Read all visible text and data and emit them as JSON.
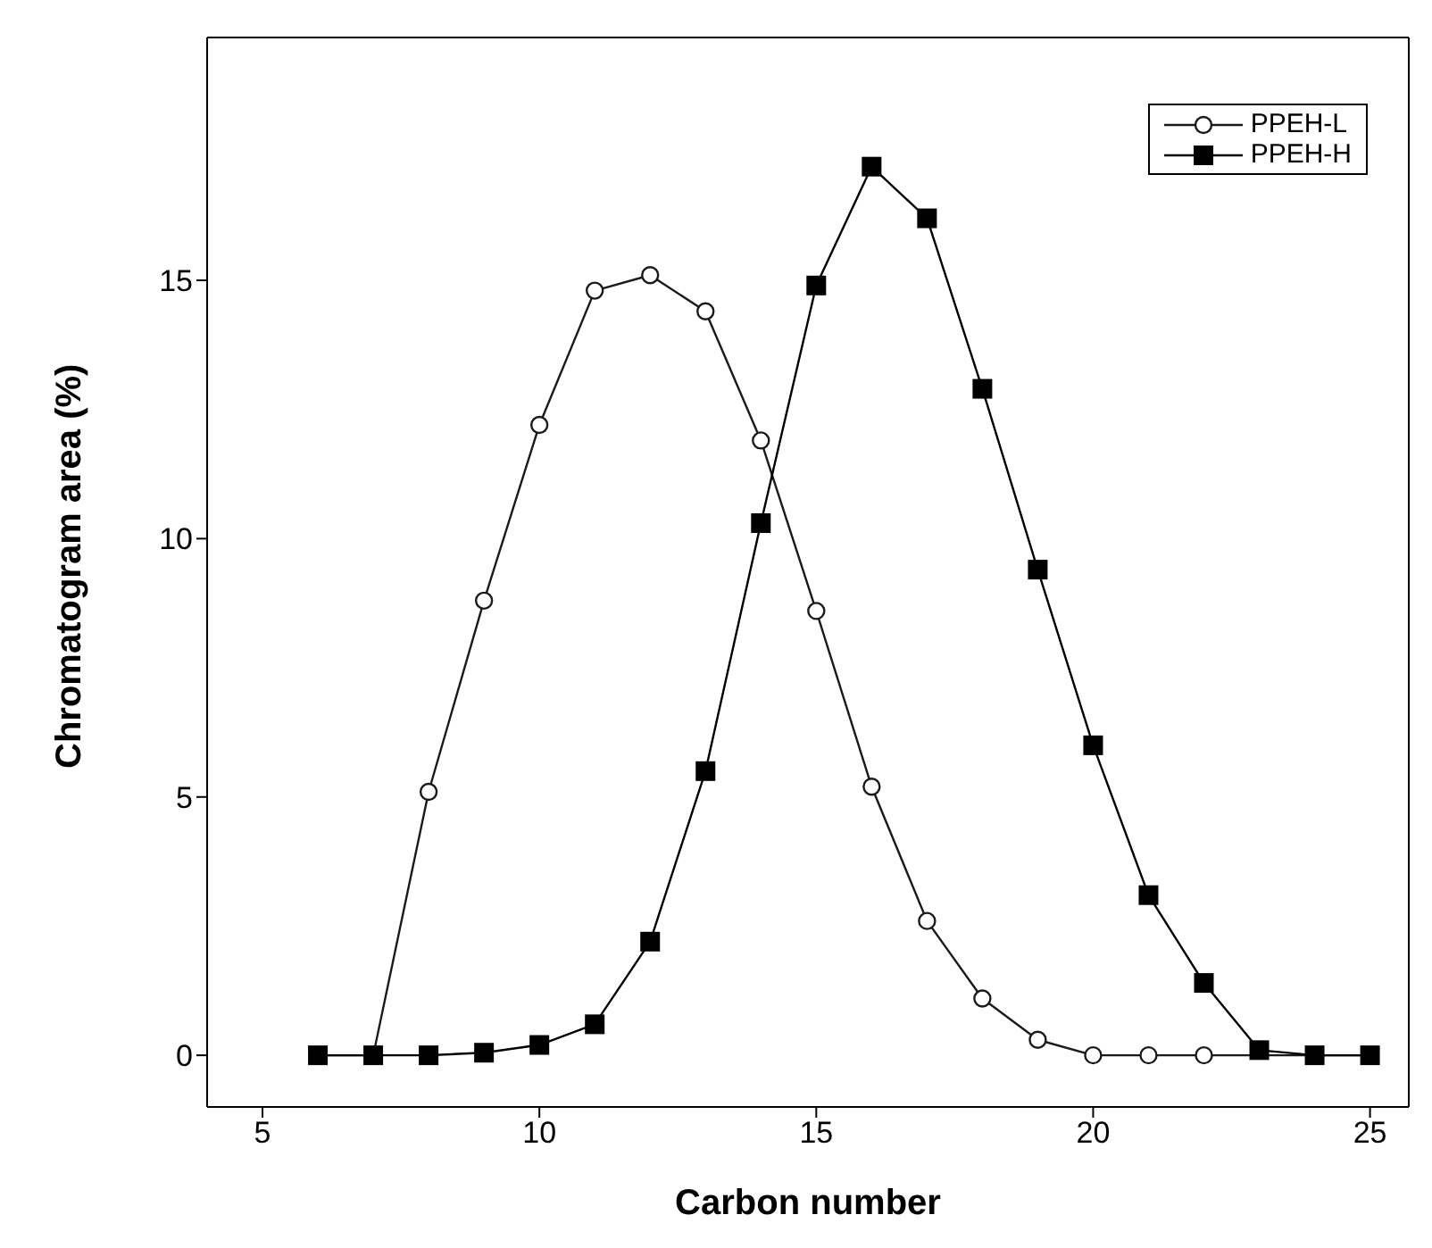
{
  "chart_data": {
    "type": "line",
    "xlabel": "Carbon number",
    "ylabel": "Chromatogram area (%)",
    "x": [
      6,
      7,
      8,
      9,
      10,
      11,
      12,
      13,
      14,
      15,
      16,
      17,
      18,
      19,
      20,
      21,
      22,
      23,
      24,
      25
    ],
    "series": [
      {
        "name": "PPEH-L",
        "color": "#1a1a1a",
        "marker": "circle",
        "values": [
          0,
          0,
          5.1,
          8.8,
          12.2,
          14.8,
          15.1,
          14.4,
          11.9,
          8.6,
          5.2,
          2.6,
          1.1,
          0.3,
          0,
          0,
          0,
          null,
          0,
          0
        ]
      },
      {
        "name": "PPEH-H",
        "color": "#000000",
        "marker": "square",
        "values": [
          0,
          0,
          0,
          0.05,
          0.2,
          0.6,
          2.2,
          5.5,
          10.3,
          14.9,
          17.2,
          16.2,
          12.9,
          9.4,
          6.0,
          3.1,
          1.4,
          0.1,
          0,
          0
        ]
      }
    ],
    "xlim": [
      4,
      25.7
    ],
    "xticks": [
      5,
      10,
      15,
      20,
      25
    ],
    "ylim": [
      -1,
      19.7
    ],
    "yticks": [
      0,
      5,
      10,
      15
    ],
    "grid": false,
    "legend": "top right",
    "line_style": "solid"
  }
}
